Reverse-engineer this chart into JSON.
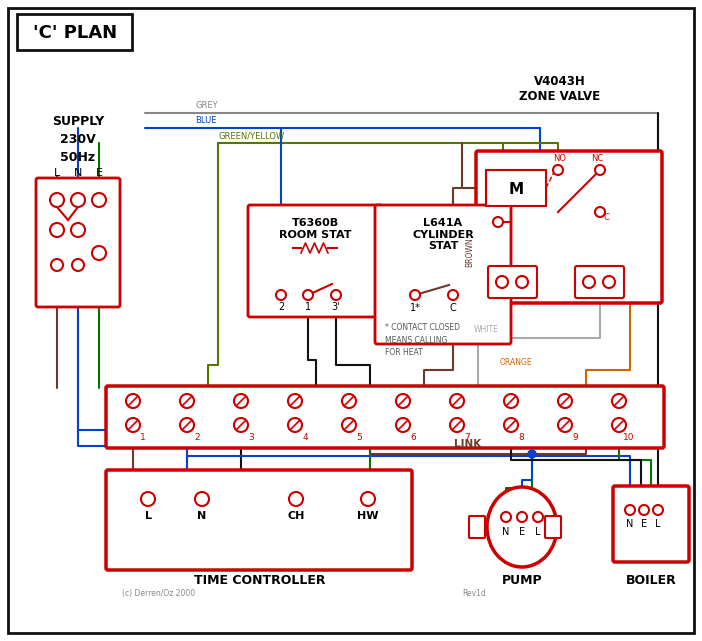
{
  "title": "'C' PLAN",
  "supply_text": "SUPPLY\n230V\n50Hz",
  "zone_valve_title": "V4043H\nZONE VALVE",
  "room_stat_title": "T6360B\nROOM STAT",
  "cyl_stat_title": "L641A\nCYLINDER\nSTAT",
  "time_ctrl_label": "TIME CONTROLLER",
  "pump_label": "PUMP",
  "boiler_label": "BOILER",
  "link_label": "LINK",
  "note_text": "* CONTACT CLOSED\nMEANS CALLING\nFOR HEAT",
  "copyright": "(c) Derren/Oz 2000",
  "rev": "Rev1d",
  "grey_label": "GREY",
  "blue_label": "BLUE",
  "gy_label": "GREEN/YELLOW",
  "brown_label": "BROWN",
  "white_label": "WHITE",
  "orange_label": "ORANGE",
  "red": "#cc0000",
  "grey": "#888888",
  "blue": "#0044cc",
  "green": "#007700",
  "brown": "#6b3a2a",
  "black": "#111111",
  "orange": "#cc6600",
  "wwhite": "#aaaaaa",
  "gy_col": "#557700"
}
